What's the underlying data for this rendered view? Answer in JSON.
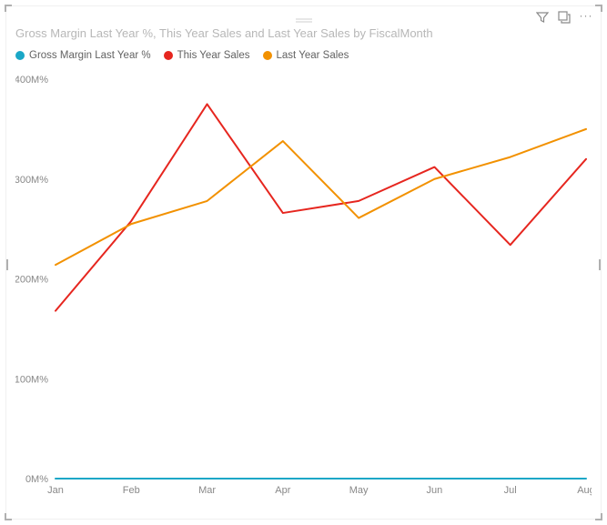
{
  "title": "Gross Margin Last Year %, This Year Sales and Last Year Sales by FiscalMonth",
  "legend": [
    {
      "label": "Gross Margin Last Year %",
      "color": "#1aa7c7"
    },
    {
      "label": "This Year Sales",
      "color": "#e6261f"
    },
    {
      "label": "Last Year Sales",
      "color": "#f29100"
    }
  ],
  "chart": {
    "type": "line",
    "background_color": "#ffffff",
    "line_width": 2,
    "x_categories": [
      "Jan",
      "Feb",
      "Mar",
      "Apr",
      "May",
      "Jun",
      "Jul",
      "Aug"
    ],
    "y_axis": {
      "min": 0,
      "max": 400,
      "ticks": [
        0,
        100,
        200,
        300,
        400
      ],
      "tick_labels": [
        "0M%",
        "100M%",
        "200M%",
        "300M%",
        "400M%"
      ],
      "label_color": "#888888",
      "label_fontsize": 11
    },
    "x_axis": {
      "label_color": "#888888",
      "label_fontsize": 11
    },
    "series": [
      {
        "name": "Gross Margin Last Year %",
        "color": "#1aa7c7",
        "values": [
          0,
          0,
          0,
          0,
          0,
          0,
          0,
          0
        ]
      },
      {
        "name": "This Year Sales",
        "color": "#e6261f",
        "values": [
          168,
          258,
          375,
          266,
          278,
          312,
          234,
          320
        ]
      },
      {
        "name": "Last Year Sales",
        "color": "#f29100",
        "values": [
          214,
          255,
          278,
          338,
          261,
          300,
          322,
          350
        ]
      }
    ]
  },
  "toolbar": {
    "filter_icon": "filter",
    "focus_icon": "focus-mode",
    "more_icon": "more-options"
  }
}
